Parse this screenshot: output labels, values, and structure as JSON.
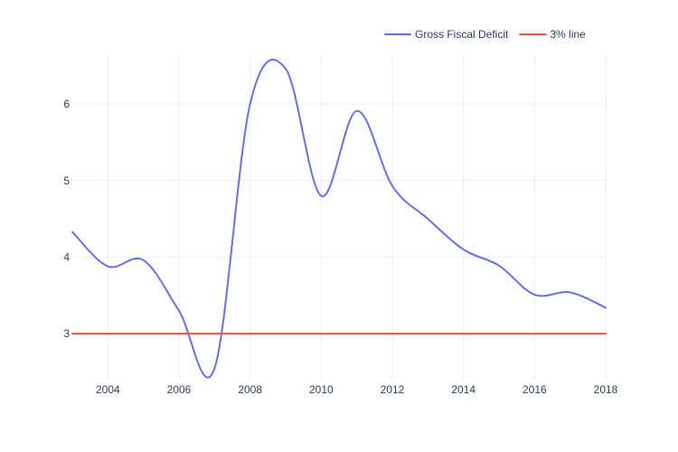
{
  "chart_data": {
    "type": "line",
    "title": "",
    "xlabel": "",
    "ylabel": "",
    "xlim": [
      2003,
      2018
    ],
    "ylim": [
      2.4,
      6.65
    ],
    "x_ticks": [
      2004,
      2006,
      2008,
      2010,
      2012,
      2014,
      2016,
      2018
    ],
    "y_ticks": [
      3,
      4,
      5,
      6
    ],
    "grid": true,
    "legend_position": "top-right",
    "series": [
      {
        "name": "Gross Fiscal Deficit",
        "color": "#636efa",
        "x": [
          2003,
          2004,
          2005,
          2006,
          2007,
          2008,
          2009,
          2010,
          2011,
          2012,
          2013,
          2014,
          2015,
          2016,
          2017,
          2018
        ],
        "y": [
          4.33,
          3.88,
          3.96,
          3.3,
          2.55,
          6.0,
          6.46,
          4.8,
          5.91,
          4.93,
          4.5,
          4.1,
          3.89,
          3.51,
          3.54,
          3.34
        ]
      },
      {
        "name": "3% line",
        "color": "#ef553b",
        "x": [
          2003,
          2018
        ],
        "y": [
          3,
          3
        ]
      }
    ]
  }
}
